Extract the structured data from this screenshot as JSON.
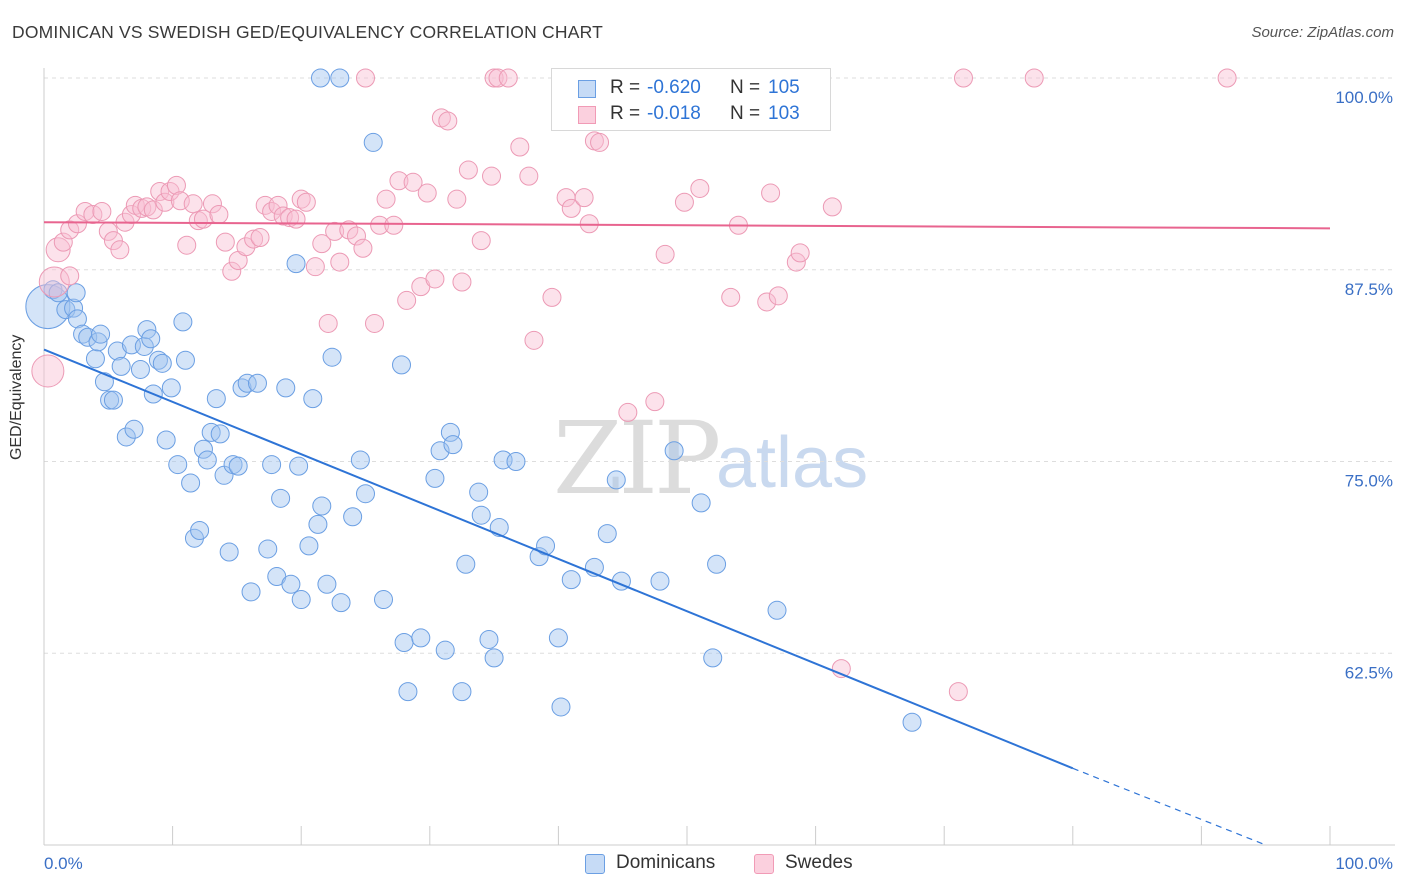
{
  "title": "DOMINICAN VS SWEDISH GED/EQUIVALENCY CORRELATION CHART",
  "source": "Source: ZipAtlas.com",
  "watermark": {
    "zip": "ZIP",
    "atlas": "atlas"
  },
  "colors": {
    "blue": "#6b9fe3",
    "blue_line": "#2e74d6",
    "pink": "#f19bb6",
    "pink_line": "#e8648f",
    "tick_text": "#3a6fc5"
  },
  "legend": {
    "r_label": "R =",
    "n_label": "N =",
    "rows": [
      {
        "r": "-0.620",
        "n": "105",
        "color": "#6b9fe3"
      },
      {
        "r": "-0.018",
        "n": "103",
        "color": "#f19bb6"
      }
    ]
  },
  "bottom_legend": [
    "Dominicans",
    "Swedes"
  ],
  "chart_data": {
    "type": "scatter",
    "title": "DOMINICAN VS SWEDISH GED/EQUIVALENCY CORRELATION CHART",
    "xlabel": "",
    "ylabel": "GED/Equivalency",
    "xlim": [
      0,
      100
    ],
    "ylim": [
      50,
      100
    ],
    "x_tick_labels": [
      "0.0%",
      "100.0%"
    ],
    "y_ticks": [
      62.5,
      75.0,
      87.5,
      100.0
    ],
    "y_tick_labels": [
      "62.5%",
      "75.0%",
      "87.5%",
      "100.0%"
    ],
    "grid": "horizontal dashed",
    "legend_position": "top-center",
    "series": [
      {
        "name": "Dominicans",
        "color": "#6b9fe3",
        "trend": {
          "x": [
            0,
            80
          ],
          "y": [
            82.3,
            55.0
          ],
          "dashed_to": [
            95,
            50.0
          ]
        },
        "points": [
          [
            0.3,
            85.1
          ],
          [
            0.7,
            86.2
          ],
          [
            1.1,
            86.0
          ],
          [
            1.7,
            84.9
          ],
          [
            2.3,
            85.0
          ],
          [
            2.6,
            84.3
          ],
          [
            3.0,
            83.3
          ],
          [
            3.4,
            83.1
          ],
          [
            4.0,
            81.7
          ],
          [
            4.2,
            82.8
          ],
          [
            4.4,
            83.3
          ],
          [
            4.7,
            80.2
          ],
          [
            5.1,
            79.0
          ],
          [
            5.4,
            79.0
          ],
          [
            5.7,
            82.2
          ],
          [
            6.0,
            81.2
          ],
          [
            6.4,
            76.6
          ],
          [
            6.8,
            82.6
          ],
          [
            7.0,
            77.1
          ],
          [
            7.5,
            81.0
          ],
          [
            7.8,
            82.5
          ],
          [
            8.0,
            83.6
          ],
          [
            8.3,
            83.0
          ],
          [
            8.5,
            79.4
          ],
          [
            8.9,
            81.6
          ],
          [
            9.2,
            81.4
          ],
          [
            9.5,
            76.4
          ],
          [
            9.9,
            79.8
          ],
          [
            10.4,
            74.8
          ],
          [
            10.8,
            84.1
          ],
          [
            11.0,
            81.6
          ],
          [
            11.4,
            73.6
          ],
          [
            11.7,
            70.0
          ],
          [
            12.1,
            70.5
          ],
          [
            12.4,
            75.8
          ],
          [
            12.7,
            75.1
          ],
          [
            13.0,
            76.9
          ],
          [
            13.4,
            79.1
          ],
          [
            13.7,
            76.8
          ],
          [
            14.0,
            74.1
          ],
          [
            14.4,
            69.1
          ],
          [
            14.7,
            74.8
          ],
          [
            15.1,
            74.7
          ],
          [
            15.4,
            79.8
          ],
          [
            15.8,
            80.1
          ],
          [
            16.1,
            66.5
          ],
          [
            16.6,
            80.1
          ],
          [
            17.4,
            69.3
          ],
          [
            17.7,
            74.8
          ],
          [
            18.1,
            67.5
          ],
          [
            18.4,
            72.6
          ],
          [
            18.8,
            79.8
          ],
          [
            19.2,
            67.0
          ],
          [
            19.6,
            87.9
          ],
          [
            19.8,
            74.7
          ],
          [
            20.0,
            66.0
          ],
          [
            20.6,
            69.5
          ],
          [
            20.9,
            79.1
          ],
          [
            21.3,
            70.9
          ],
          [
            21.6,
            72.1
          ],
          [
            22.0,
            67.0
          ],
          [
            22.4,
            81.8
          ],
          [
            23.1,
            65.8
          ],
          [
            24.0,
            71.4
          ],
          [
            24.6,
            75.1
          ],
          [
            25.0,
            72.9
          ],
          [
            25.6,
            95.8
          ],
          [
            26.4,
            66.0
          ],
          [
            27.8,
            81.3
          ],
          [
            28.0,
            63.2
          ],
          [
            28.3,
            60.0
          ],
          [
            29.3,
            63.5
          ],
          [
            30.4,
            73.9
          ],
          [
            30.8,
            75.7
          ],
          [
            31.2,
            62.7
          ],
          [
            31.6,
            76.9
          ],
          [
            31.8,
            76.1
          ],
          [
            32.5,
            60.0
          ],
          [
            32.8,
            68.3
          ],
          [
            33.8,
            73.0
          ],
          [
            34.0,
            71.5
          ],
          [
            34.6,
            63.4
          ],
          [
            35.0,
            62.2
          ],
          [
            35.4,
            70.7
          ],
          [
            35.7,
            75.1
          ],
          [
            36.7,
            75.0
          ],
          [
            38.5,
            68.8
          ],
          [
            39.0,
            69.5
          ],
          [
            40.0,
            63.5
          ],
          [
            40.2,
            59.0
          ],
          [
            41.0,
            67.3
          ],
          [
            42.8,
            68.1
          ],
          [
            43.8,
            70.3
          ],
          [
            44.5,
            73.8
          ],
          [
            44.9,
            67.2
          ],
          [
            47.9,
            67.2
          ],
          [
            49.0,
            75.7
          ],
          [
            51.1,
            72.3
          ],
          [
            52.0,
            62.2
          ],
          [
            52.3,
            68.3
          ],
          [
            57.0,
            65.3
          ],
          [
            67.5,
            58.0
          ],
          [
            21.5,
            100.0
          ],
          [
            23.0,
            100.0
          ],
          [
            2.5,
            86.0
          ]
        ],
        "sizes": {
          "large_first": true
        }
      },
      {
        "name": "Swedes",
        "color": "#f19bb6",
        "trend": {
          "x": [
            0,
            100
          ],
          "y": [
            90.6,
            90.2
          ]
        },
        "points": [
          [
            0.3,
            80.9
          ],
          [
            0.8,
            86.7
          ],
          [
            1.1,
            88.8
          ],
          [
            1.5,
            89.3
          ],
          [
            2.0,
            90.1
          ],
          [
            2.6,
            90.5
          ],
          [
            3.2,
            91.3
          ],
          [
            3.8,
            91.1
          ],
          [
            4.5,
            91.3
          ],
          [
            5.0,
            90.0
          ],
          [
            5.4,
            89.4
          ],
          [
            5.9,
            88.8
          ],
          [
            6.3,
            90.6
          ],
          [
            6.8,
            91.1
          ],
          [
            7.1,
            91.7
          ],
          [
            7.6,
            91.5
          ],
          [
            8.0,
            91.6
          ],
          [
            8.5,
            91.4
          ],
          [
            9.0,
            92.6
          ],
          [
            9.4,
            91.9
          ],
          [
            9.8,
            92.6
          ],
          [
            10.3,
            93.0
          ],
          [
            10.6,
            92.0
          ],
          [
            11.1,
            89.1
          ],
          [
            11.6,
            91.8
          ],
          [
            12.0,
            90.7
          ],
          [
            12.4,
            90.8
          ],
          [
            13.1,
            91.8
          ],
          [
            13.6,
            91.1
          ],
          [
            14.1,
            89.3
          ],
          [
            14.6,
            87.4
          ],
          [
            15.1,
            88.1
          ],
          [
            15.7,
            89.0
          ],
          [
            16.3,
            89.5
          ],
          [
            16.8,
            89.6
          ],
          [
            17.2,
            91.7
          ],
          [
            17.7,
            91.3
          ],
          [
            18.2,
            91.7
          ],
          [
            18.6,
            91.0
          ],
          [
            19.1,
            90.9
          ],
          [
            19.6,
            90.8
          ],
          [
            20.0,
            92.1
          ],
          [
            20.4,
            91.9
          ],
          [
            21.1,
            87.7
          ],
          [
            21.6,
            89.2
          ],
          [
            22.1,
            84.0
          ],
          [
            22.6,
            90.0
          ],
          [
            23.0,
            88.0
          ],
          [
            23.7,
            90.1
          ],
          [
            24.3,
            89.7
          ],
          [
            24.8,
            88.9
          ],
          [
            25.7,
            84.0
          ],
          [
            26.1,
            90.4
          ],
          [
            26.6,
            92.1
          ],
          [
            27.2,
            90.4
          ],
          [
            27.6,
            93.3
          ],
          [
            28.2,
            85.5
          ],
          [
            28.7,
            93.2
          ],
          [
            29.3,
            86.4
          ],
          [
            29.8,
            92.5
          ],
          [
            30.4,
            86.9
          ],
          [
            30.9,
            97.4
          ],
          [
            31.4,
            97.2
          ],
          [
            32.1,
            92.1
          ],
          [
            32.5,
            86.7
          ],
          [
            33.0,
            94.0
          ],
          [
            34.0,
            89.4
          ],
          [
            34.8,
            93.6
          ],
          [
            35.0,
            100.0
          ],
          [
            35.3,
            100.0
          ],
          [
            36.1,
            100.0
          ],
          [
            37.0,
            95.5
          ],
          [
            37.7,
            93.6
          ],
          [
            38.1,
            82.9
          ],
          [
            39.5,
            85.7
          ],
          [
            40.6,
            92.2
          ],
          [
            41.0,
            91.5
          ],
          [
            42.0,
            92.2
          ],
          [
            42.4,
            90.5
          ],
          [
            42.8,
            95.9
          ],
          [
            43.2,
            95.8
          ],
          [
            45.0,
            100.0
          ],
          [
            45.4,
            78.2
          ],
          [
            47.0,
            100.0
          ],
          [
            47.5,
            78.9
          ],
          [
            48.3,
            88.5
          ],
          [
            49.8,
            91.9
          ],
          [
            51.0,
            92.8
          ],
          [
            53.4,
            85.7
          ],
          [
            54.0,
            90.4
          ],
          [
            56.2,
            85.4
          ],
          [
            56.5,
            92.5
          ],
          [
            57.1,
            85.8
          ],
          [
            58.5,
            88.0
          ],
          [
            58.8,
            88.6
          ],
          [
            61.3,
            91.6
          ],
          [
            62.0,
            61.5
          ],
          [
            71.1,
            60.0
          ],
          [
            71.5,
            100.0
          ],
          [
            77.0,
            100.0
          ],
          [
            92.0,
            100.0
          ],
          [
            25.0,
            100.0
          ],
          [
            2.0,
            87.1
          ]
        ]
      }
    ]
  }
}
